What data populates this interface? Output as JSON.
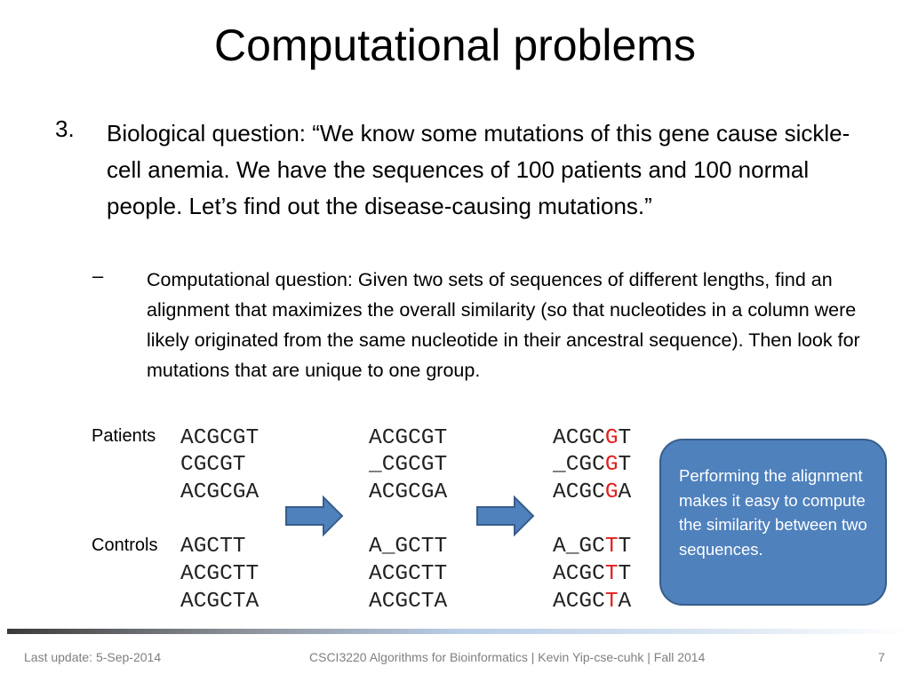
{
  "title": "Computational problems",
  "bullet": {
    "number": "3.",
    "text": "Biological question: “We know some mutations of this gene cause sickle-cell anemia. We have the sequences of 100 patients and 100 normal people. Let’s find out the disease-causing mutations.”"
  },
  "sub_bullet": {
    "marker": "–",
    "text": "Computational question: Given two sets of sequences of different lengths, find an alignment that maximizes the overall similarity (so that nucleotides in a column were likely originated from the same nucleotide in their ancestral sequence). Then look for mutations that are unique to one group."
  },
  "groups": {
    "patients": "Patients",
    "controls": "Controls"
  },
  "columns": [
    {
      "rows": [
        {
          "pre": "ACGCGT",
          "red": "",
          "post": ""
        },
        {
          "pre": "CGCGT",
          "red": "",
          "post": ""
        },
        {
          "pre": "ACGCGA",
          "red": "",
          "post": ""
        },
        {
          "pre": "AGCTT",
          "red": "",
          "post": ""
        },
        {
          "pre": "ACGCTT",
          "red": "",
          "post": ""
        },
        {
          "pre": "ACGCTA",
          "red": "",
          "post": ""
        }
      ]
    },
    {
      "rows": [
        {
          "pre": "ACGCGT",
          "red": "",
          "post": ""
        },
        {
          "pre": "_CGCGT",
          "red": "",
          "post": ""
        },
        {
          "pre": "ACGCGA",
          "red": "",
          "post": ""
        },
        {
          "pre": "A_GCTT",
          "red": "",
          "post": ""
        },
        {
          "pre": "ACGCTT",
          "red": "",
          "post": ""
        },
        {
          "pre": "ACGCTA",
          "red": "",
          "post": ""
        }
      ]
    },
    {
      "rows": [
        {
          "pre": "ACGC",
          "red": "G",
          "post": "T"
        },
        {
          "pre": "_CGC",
          "red": "G",
          "post": "T"
        },
        {
          "pre": "ACGC",
          "red": "G",
          "post": "A"
        },
        {
          "pre": "A_GC",
          "red": "T",
          "post": "T"
        },
        {
          "pre": "ACGC",
          "red": "T",
          "post": "T"
        },
        {
          "pre": "ACGC",
          "red": "T",
          "post": "A"
        }
      ]
    }
  ],
  "callout": "Performing the alignment makes it easy to compute the similarity between two sequences.",
  "colors": {
    "arrow_fill": "#4f81bd",
    "arrow_stroke": "#385d8a",
    "highlight": "#e02020"
  },
  "footer": {
    "left": "Last update: 5-Sep-2014",
    "center": "CSCI3220 Algorithms for Bioinformatics |  Kevin Yip-cse-cuhk | Fall 2014",
    "page": "7"
  }
}
